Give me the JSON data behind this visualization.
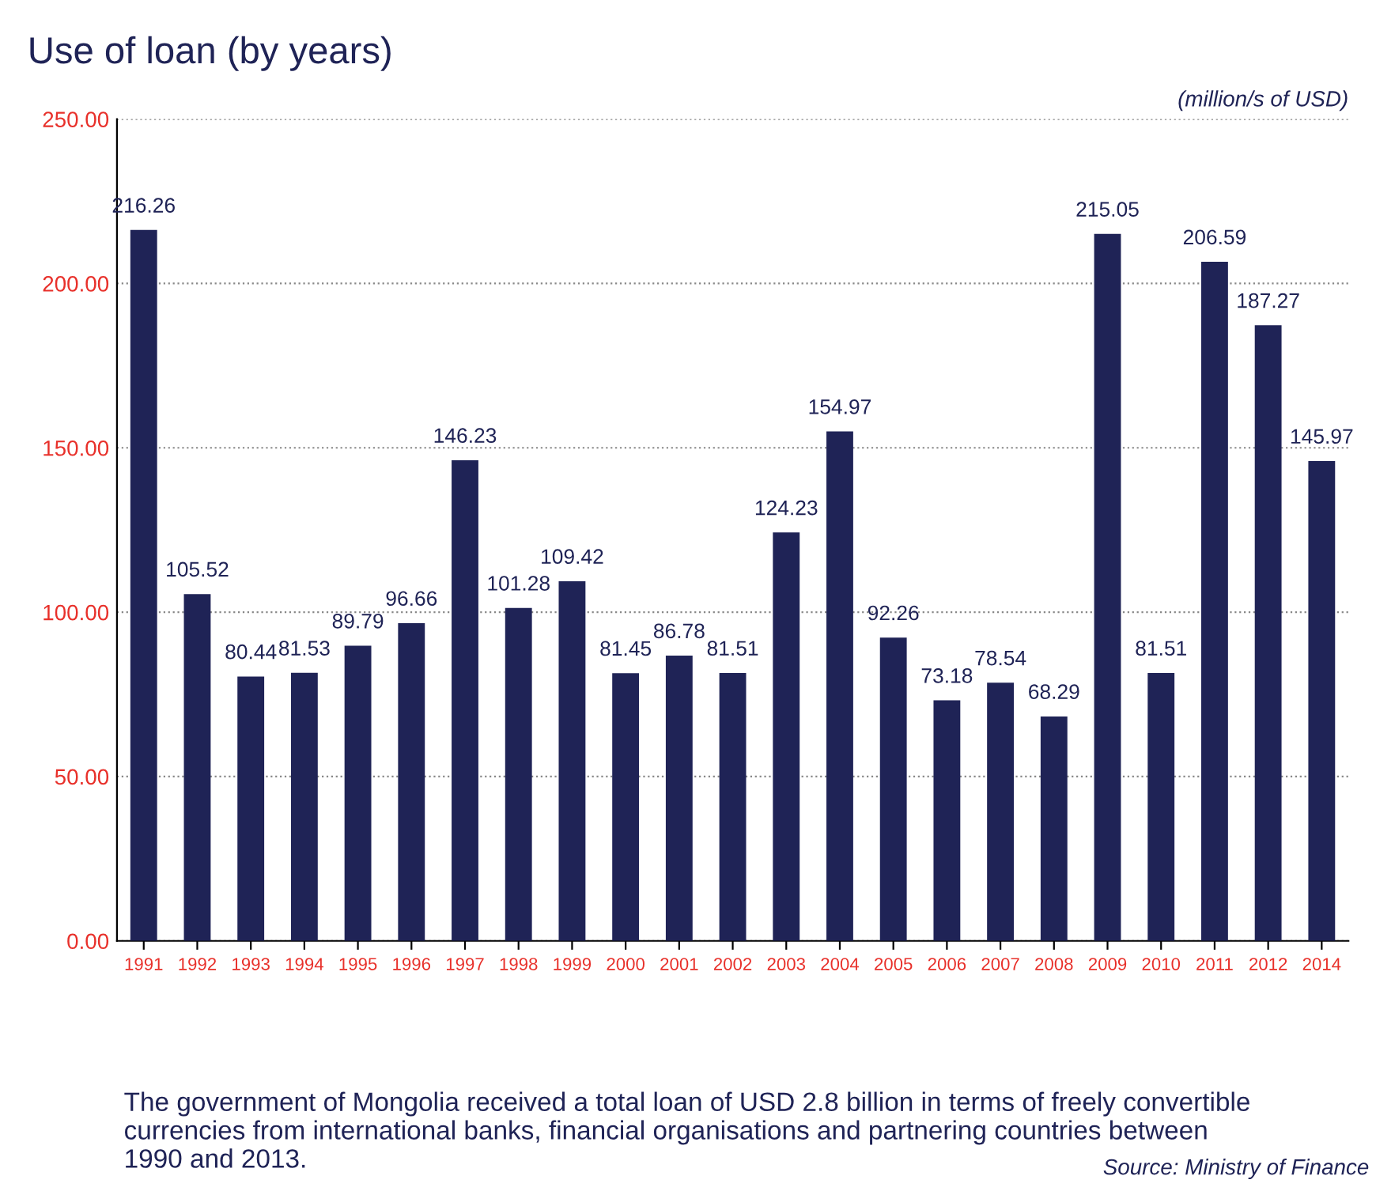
{
  "chart_data": {
    "type": "bar",
    "title": "Use of loan (by years)",
    "categories": [
      "1991",
      "1992",
      "1993",
      "1994",
      "1995",
      "1996",
      "1997",
      "1998",
      "1999",
      "2000",
      "2001",
      "2002",
      "2003",
      "2004",
      "2005",
      "2006",
      "2007",
      "2008",
      "2009",
      "2010",
      "2011",
      "2012",
      "2014"
    ],
    "values": [
      216.26,
      105.52,
      80.44,
      81.53,
      89.79,
      96.66,
      146.23,
      101.28,
      109.42,
      81.45,
      86.78,
      81.51,
      124.23,
      154.97,
      92.26,
      73.18,
      78.54,
      68.29,
      215.05,
      81.51,
      206.59,
      187.27,
      145.97
    ],
    "color": "#1f2356",
    "ylim": [
      0,
      250
    ],
    "yticks": [
      {
        "value": 0,
        "label": "0.00"
      },
      {
        "value": 50,
        "label": "50.00"
      },
      {
        "value": 100,
        "label": "100.00"
      },
      {
        "value": 150,
        "label": "150.00"
      },
      {
        "value": 200,
        "label": "200.00"
      },
      {
        "value": 250,
        "label": "250.00"
      }
    ],
    "grid": "y",
    "line_style": "dotted",
    "data_labels": true,
    "annotations": [
      "(million/s of USD)",
      "The government of Mongolia received a total loan of USD 2.8 billion in terms of freely convertible currencies from international banks, financial organisations and partnering countries between 1990 and 2013.",
      "Source: Ministry of Finance"
    ]
  }
}
